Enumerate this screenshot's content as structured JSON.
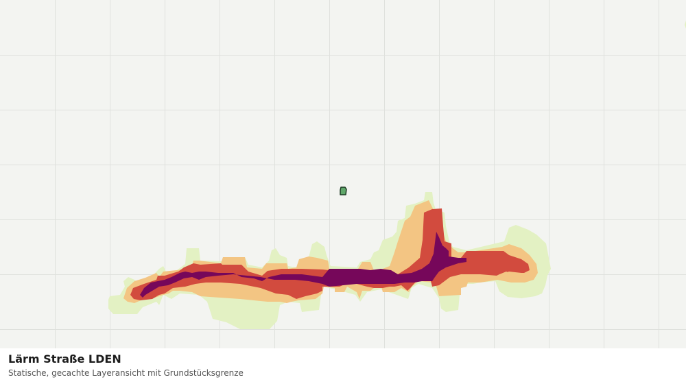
{
  "map": {
    "layer": "noise-road-lden",
    "grid": true,
    "colors": {
      "background": "#f3f4f1",
      "grid": "#dfe1dd",
      "band_lowest": "#e3f1c3",
      "band_low": "#f3c583",
      "band_mid": "#d24b3e",
      "band_high": "#76075a",
      "parcel_fill": "#5fa76a",
      "parcel_outline": "#1d3a24"
    }
  },
  "caption": {
    "title": "Lärm Straße LDEN",
    "subtitle": "Statische, gecachte Layeransicht mit Grundstücksgrenze"
  }
}
